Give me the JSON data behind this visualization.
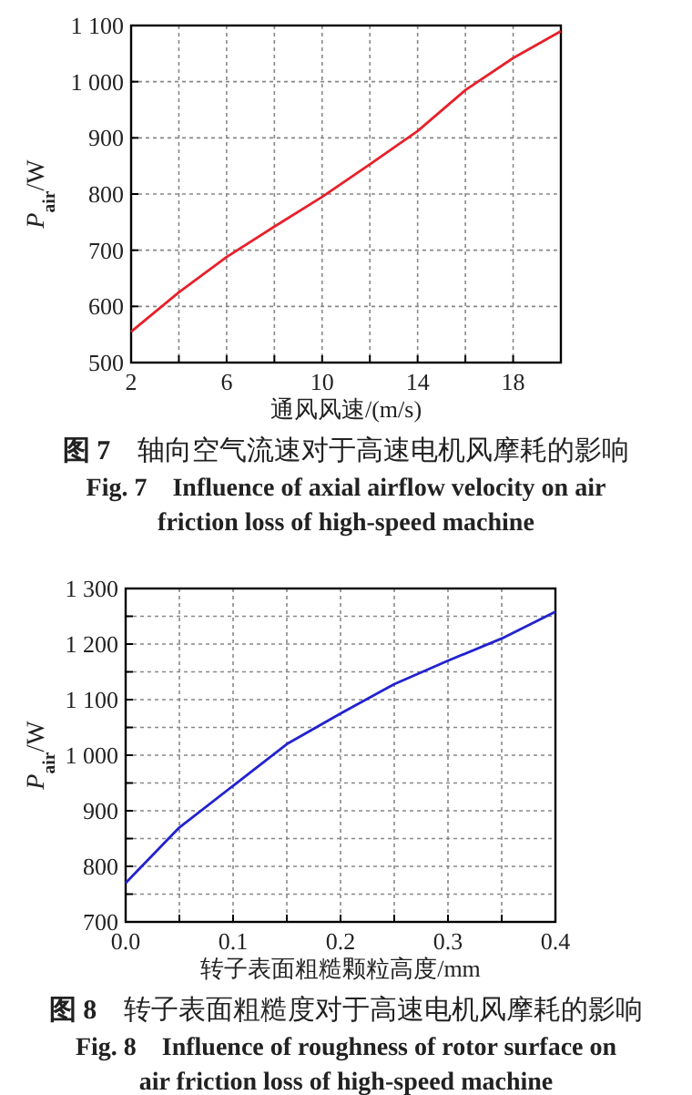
{
  "chart_data": [
    {
      "type": "line",
      "title": "**图 7**　轴向空气流速对于高速电机风摩耗的影响",
      "subtitle": "Fig. 7　Influence of axial airflow velocity on air friction loss of high-speed machine",
      "xlabel": "通风风速/(m/s)",
      "ylabel": "*P*$_{air}$/W",
      "x": [
        2,
        4,
        6,
        8,
        10,
        12,
        14,
        16,
        18,
        20
      ],
      "series": [
        {
          "color": "#e8202a",
          "values": [
            555,
            625,
            688,
            742,
            795,
            853,
            912,
            985,
            1042,
            1090
          ]
        }
      ],
      "xlim": [
        2,
        20
      ],
      "xticks": [
        2,
        {
          "value": 4,
          "label": null
        },
        6,
        {
          "value": 8,
          "label": null
        },
        10,
        {
          "value": 12,
          "label": null
        },
        14,
        {
          "value": 16,
          "label": null
        },
        18,
        {
          "value": 20,
          "label": null
        }
      ],
      "ylim": [
        500,
        1100
      ],
      "yticks": [
        500,
        600,
        700,
        800,
        900,
        {
          "value": 1000,
          "label": "1 000"
        },
        {
          "value": 1100,
          "label": "1 100"
        }
      ],
      "grid": true
    },
    {
      "type": "line",
      "title": "**图 8**　转子表面粗糙度对于高速电机风摩耗的影响",
      "subtitle": "Fig. 8　Influence of roughness of rotor surface on air friction loss of high-speed machine",
      "xlabel": "转子表面粗糙颗粒高度/mm",
      "ylabel": "*P*$_{air}$/W",
      "x": [
        0,
        0.05,
        0.1,
        0.15,
        0.2,
        0.25,
        0.3,
        0.35,
        0.4
      ],
      "series": [
        {
          "color": "#2222d0",
          "values": [
            770,
            870,
            945,
            1020,
            1075,
            1128,
            1170,
            1210,
            1258
          ]
        }
      ],
      "xlim": [
        0,
        0.4
      ],
      "xticks": [
        {
          "value": 0,
          "label": "0.0"
        },
        {
          "value": 0.05,
          "label": null
        },
        0.1,
        {
          "value": 0.15,
          "label": null
        },
        0.2,
        {
          "value": 0.25,
          "label": null
        },
        0.3,
        {
          "value": 0.35,
          "label": null
        },
        0.4
      ],
      "ylim": [
        700,
        1300
      ],
      "yticks": [
        700,
        {
          "value": 750,
          "label": null
        },
        800,
        {
          "value": 850,
          "label": null
        },
        900,
        {
          "value": 950,
          "label": null
        },
        {
          "value": 1000,
          "label": "1 000"
        },
        {
          "value": 1050,
          "label": null
        },
        {
          "value": 1100,
          "label": "1 100"
        },
        {
          "value": 1150,
          "label": null
        },
        {
          "value": 1200,
          "label": "1 200"
        },
        {
          "value": 1250,
          "label": null
        },
        {
          "value": 1300,
          "label": "1 300"
        }
      ],
      "grid": true
    }
  ]
}
